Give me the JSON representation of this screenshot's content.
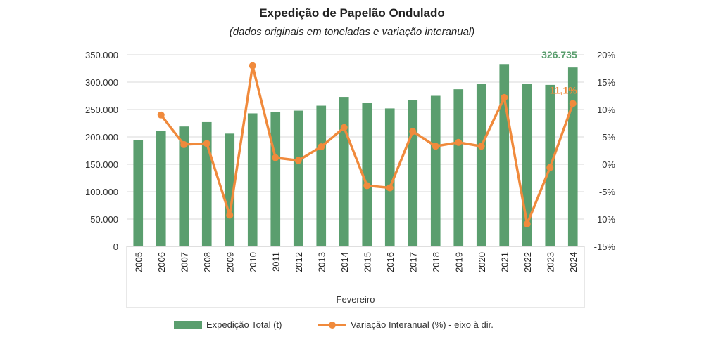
{
  "chart_data": {
    "type": "bar+line",
    "title": "Expedição de Papelão Ondulado",
    "subtitle": "(dados originais em toneladas e variação interanual)",
    "xlabel": "Fevereiro",
    "categories": [
      "2005",
      "2006",
      "2007",
      "2008",
      "2009",
      "2010",
      "2011",
      "2012",
      "2013",
      "2014",
      "2015",
      "2016",
      "2017",
      "2018",
      "2019",
      "2020",
      "2021",
      "2022",
      "2023",
      "2024"
    ],
    "y_left": {
      "ylim": [
        0,
        350000
      ],
      "ticks": [
        0,
        50000,
        100000,
        150000,
        200000,
        250000,
        300000,
        350000
      ],
      "tick_labels": [
        "0",
        "50.000",
        "100.000",
        "150.000",
        "200.000",
        "250.000",
        "300.000",
        "350.000"
      ]
    },
    "y_right": {
      "ylim": [
        -15,
        20
      ],
      "ticks": [
        -15,
        -10,
        -5,
        0,
        5,
        10,
        15,
        20
      ],
      "tick_labels": [
        "-15%",
        "-10%",
        "-5%",
        "0%",
        "5%",
        "10%",
        "15%",
        "20%"
      ]
    },
    "series": [
      {
        "name": "Expedição Total (t)",
        "kind": "bar",
        "axis": "left",
        "color": "#5a9e6e",
        "values": [
          194000,
          211000,
          219000,
          227000,
          206000,
          243000,
          246000,
          248000,
          257000,
          273000,
          262000,
          252000,
          267000,
          275000,
          287000,
          297000,
          333000,
          297000,
          295000,
          326735
        ]
      },
      {
        "name": "Variação Interanual (%) - eixo à dir.",
        "kind": "line",
        "axis": "right",
        "color": "#f08a3c",
        "values": [
          null,
          9.0,
          3.6,
          3.8,
          -9.3,
          18.0,
          1.2,
          0.7,
          3.2,
          6.7,
          -3.9,
          -4.3,
          6.0,
          3.3,
          4.0,
          3.3,
          12.2,
          -10.9,
          -0.6,
          11.1
        ]
      }
    ],
    "annotations": [
      {
        "text": "326.735",
        "category": "2024",
        "series": "Expedição Total (t)",
        "color": "#5a9e6e"
      },
      {
        "text": "11,1%",
        "category": "2024",
        "series": "Variação Interanual (%) - eixo à dir.",
        "color": "#f08a3c"
      }
    ],
    "grid": true,
    "legend": "bottom"
  }
}
